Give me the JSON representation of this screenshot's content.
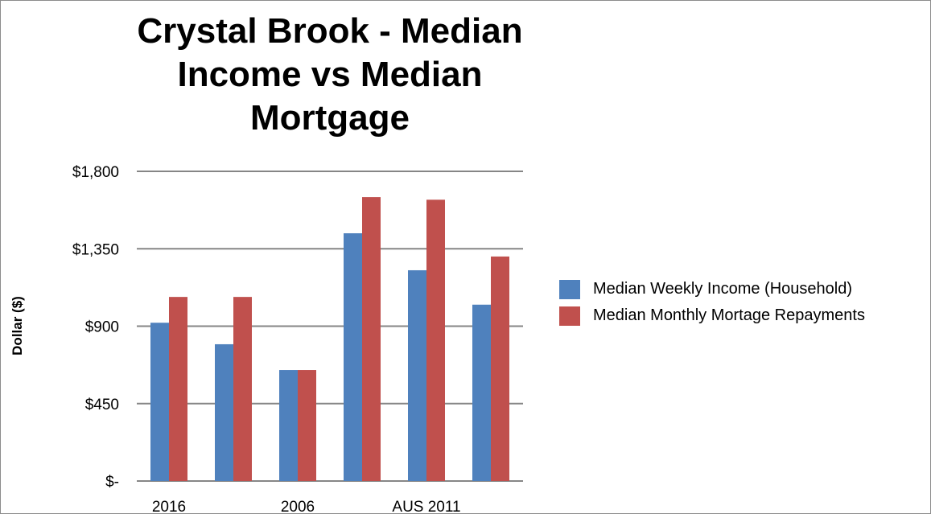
{
  "chart_data": {
    "type": "bar",
    "title": "Crystal Brook - Median\nIncome vs Median\nMortgage",
    "ylabel": "Dollar ($)",
    "xlabel": "",
    "ylim": [
      0,
      1800
    ],
    "yticks": [
      0,
      450,
      900,
      1350,
      1800
    ],
    "ytick_labels": [
      "$-",
      "$450",
      "$900",
      "$1,350",
      "$1,800"
    ],
    "x_axis_labels_shown": [
      "2016",
      "",
      "2006",
      "",
      "AUS 2011",
      ""
    ],
    "series": [
      {
        "name": "Median Weekly Income (Household)",
        "color": "#4f81bd",
        "values": [
          920,
          795,
          645,
          1440,
          1225,
          1025
        ]
      },
      {
        "name": "Median Monthly Mortage Repayments",
        "color": "#c0504d",
        "values": [
          1070,
          1070,
          645,
          1650,
          1635,
          1305
        ]
      }
    ],
    "grid": true,
    "legend_position": "right"
  }
}
